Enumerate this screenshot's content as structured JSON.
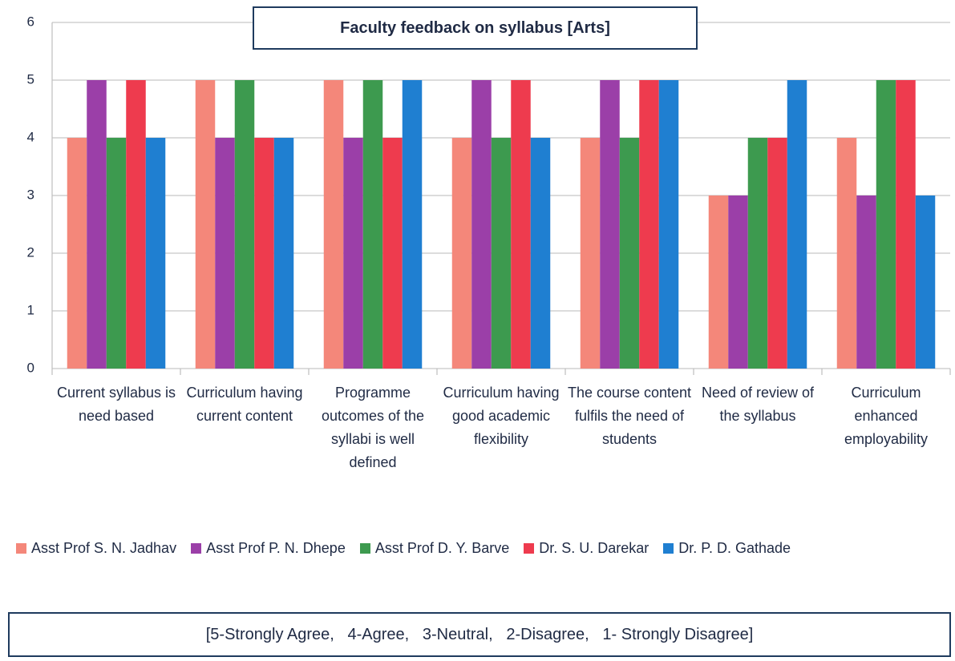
{
  "chart_data": {
    "type": "bar",
    "title": "Faculty feedback on syllabus [Arts]",
    "note": "[5-Strongly Agree,   4-Agree,   3-Neutral,   2-Disagree,   1- Strongly Disagree]",
    "categories": [
      "Current syllabus is need based",
      "Curriculum having current content",
      "Programme outcomes of the syllabi is well defined",
      "Curriculum having good academic flexibility",
      "The course content fulfils the need of students",
      "Need of review of the syllabus",
      "Curriculum enhanced employability"
    ],
    "series": [
      {
        "name": "Asst Prof S. N. Jadhav",
        "color": "#f4877a",
        "values": [
          4,
          5,
          5,
          4,
          4,
          3,
          4
        ]
      },
      {
        "name": "Asst Prof P. N. Dhepe",
        "color": "#9b3fa8",
        "values": [
          5,
          4,
          4,
          5,
          5,
          3,
          3
        ]
      },
      {
        "name": "Asst Prof D. Y. Barve",
        "color": "#3d9a4f",
        "values": [
          4,
          5,
          5,
          4,
          4,
          4,
          5
        ]
      },
      {
        "name": "Dr. S. U. Darekar",
        "color": "#ee3b4e",
        "values": [
          5,
          4,
          4,
          5,
          5,
          4,
          5
        ]
      },
      {
        "name": "Dr. P. D. Gathade",
        "color": "#1f7fd1",
        "values": [
          4,
          4,
          5,
          4,
          5,
          5,
          3
        ]
      }
    ],
    "ylim": [
      0,
      6
    ],
    "yticks": [
      0,
      1,
      2,
      3,
      4,
      5,
      6
    ],
    "grid": true,
    "legend": "bottom"
  }
}
